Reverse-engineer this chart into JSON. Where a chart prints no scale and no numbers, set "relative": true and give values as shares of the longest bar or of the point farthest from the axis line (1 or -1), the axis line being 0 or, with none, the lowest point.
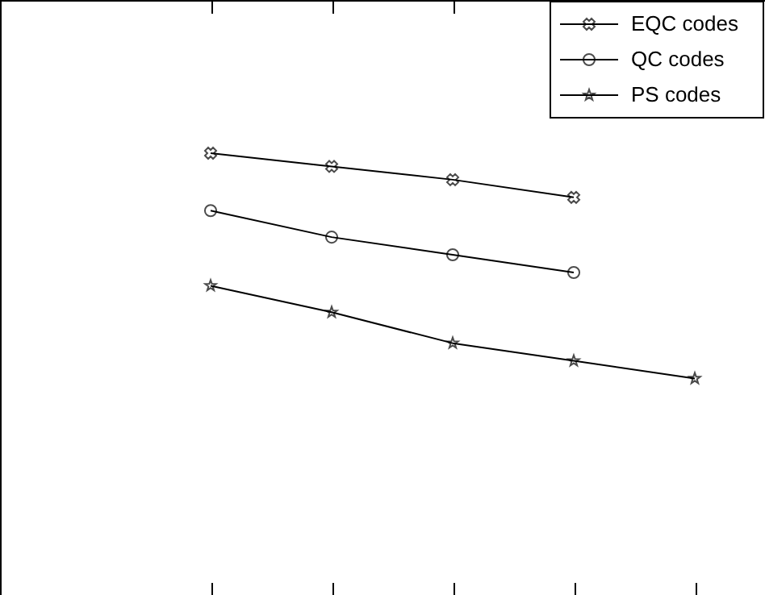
{
  "chart_data": {
    "type": "line",
    "relative": true,
    "categories": [
      null,
      null,
      null,
      null,
      null
    ],
    "legend": "top right",
    "line_style": "solid",
    "grid": false,
    "series": [
      {
        "name": "EQC codes",
        "color": "#000000",
        "marker": "cross",
        "values": [
          1.0,
          0.97,
          0.94,
          0.9,
          null
        ]
      },
      {
        "name": "QC codes",
        "color": "#000000",
        "marker": "circle",
        "values": [
          0.87,
          0.81,
          0.77,
          0.73,
          null
        ]
      },
      {
        "name": "PS codes",
        "color": "#000000",
        "marker": "star",
        "values": [
          0.7,
          0.64,
          0.57,
          0.53,
          0.49
        ]
      }
    ]
  }
}
